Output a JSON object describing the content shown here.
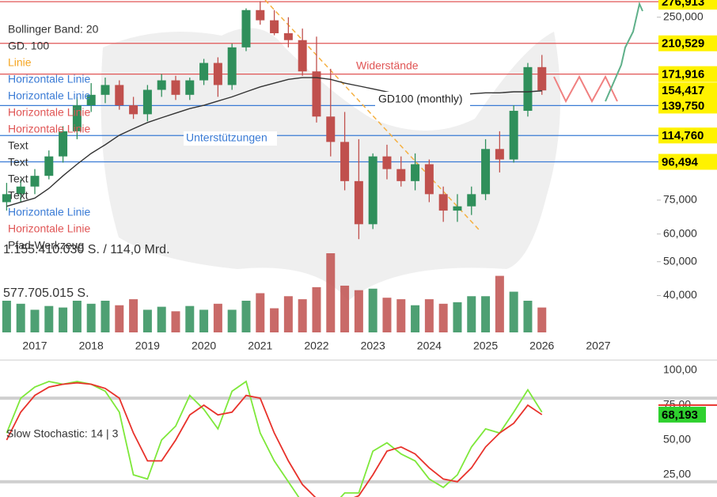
{
  "chart_data": [
    {
      "type": "candlestick",
      "log": true,
      "legend": [
        {
          "text": "Bollinger Band: 20",
          "color": "#333333"
        },
        {
          "text": "GD. 100",
          "color": "#333333"
        },
        {
          "text": "Linie",
          "color": "#f5a623"
        },
        {
          "text": "Horizontale Linie",
          "color": "#3a7bd5"
        },
        {
          "text": "Horizontale Linie",
          "color": "#3a7bd5"
        },
        {
          "text": "Horizontale Linie",
          "color": "#e05555"
        },
        {
          "text": "Horizontale Linie",
          "color": "#e05555"
        },
        {
          "text": "Text",
          "color": "#333333"
        },
        {
          "text": "Text",
          "color": "#333333"
        },
        {
          "text": "Text",
          "color": "#333333"
        },
        {
          "text": "Text",
          "color": "#333333"
        },
        {
          "text": "Horizontale Linie",
          "color": "#3a7bd5"
        },
        {
          "text": "Horizontale Linie",
          "color": "#e05555"
        },
        {
          "text": "Pfad-Werkzeug",
          "color": "#333333"
        }
      ],
      "annotations": {
        "resistance": "Widerstände",
        "support": "Unterstützungen",
        "gd": "GD100 (monthly)"
      },
      "x": [
        2016.5,
        2016.75,
        2017,
        2017.25,
        2017.5,
        2017.75,
        2018,
        2018.25,
        2018.5,
        2018.75,
        2019,
        2019.25,
        2019.5,
        2019.75,
        2020,
        2020.25,
        2020.5,
        2020.75,
        2021,
        2021.25,
        2021.5,
        2021.75,
        2022,
        2022.25,
        2022.5,
        2022.75,
        2023,
        2023.25,
        2023.5,
        2023.75,
        2024,
        2024.25,
        2024.5,
        2024.75,
        2025,
        2025.25,
        2025.5,
        2025.75,
        2026
      ],
      "open": [
        74000,
        78000,
        82000,
        88000,
        100000,
        118000,
        140000,
        150000,
        160000,
        140000,
        132000,
        155000,
        165000,
        150000,
        165000,
        185000,
        160000,
        205000,
        262000,
        245000,
        225000,
        215000,
        175000,
        130000,
        110000,
        85000,
        64000,
        100000,
        92000,
        85000,
        95000,
        78000,
        70000,
        72000,
        78000,
        105000,
        98000,
        135000,
        180000
      ],
      "high": [
        84000,
        86000,
        92000,
        104000,
        122000,
        148000,
        162000,
        168000,
        165000,
        148000,
        160000,
        172000,
        170000,
        168000,
        190000,
        192000,
        210000,
        265000,
        278000,
        262000,
        250000,
        232000,
        220000,
        178000,
        134000,
        112000,
        102000,
        108000,
        100000,
        102000,
        98000,
        82000,
        78000,
        82000,
        112000,
        118000,
        140000,
        185000,
        195000
      ],
      "low": [
        70000,
        74000,
        78000,
        86000,
        96000,
        112000,
        134000,
        142000,
        136000,
        128000,
        126000,
        148000,
        145000,
        145000,
        160000,
        148000,
        155000,
        200000,
        238000,
        222000,
        205000,
        170000,
        125000,
        100000,
        80000,
        58000,
        62000,
        86000,
        82000,
        80000,
        74000,
        65000,
        65000,
        68000,
        75000,
        90000,
        96000,
        130000,
        150000
      ],
      "close": [
        78000,
        82000,
        88000,
        100000,
        118000,
        140000,
        150000,
        160000,
        140000,
        132000,
        155000,
        165000,
        150000,
        165000,
        185000,
        160000,
        205000,
        262000,
        245000,
        225000,
        215000,
        175000,
        130000,
        110000,
        85000,
        64000,
        100000,
        92000,
        85000,
        95000,
        78000,
        70000,
        72000,
        78000,
        105000,
        98000,
        135000,
        180000,
        154417
      ],
      "gd100": [
        72000,
        74000,
        76000,
        81000,
        88000,
        95000,
        102000,
        108000,
        115000,
        120000,
        125000,
        129000,
        133000,
        137000,
        140000,
        144000,
        148000,
        153000,
        158000,
        162000,
        166000,
        168000,
        168000,
        166000,
        162000,
        159000,
        156000,
        153000,
        150000,
        149000,
        149000,
        150000,
        150000,
        151000,
        152000,
        152000,
        153000,
        153000,
        154000
      ],
      "up_color": "#2f8f5b",
      "down_color": "#c0504d",
      "gd_color": "#333333",
      "ylim": [
        31400,
        280000
      ],
      "yticks": [
        {
          "value": 250000,
          "label": "250,000"
        },
        {
          "value": 75000,
          "label": "75,000"
        },
        {
          "value": 60000,
          "label": "60,000"
        },
        {
          "value": 50000,
          "label": "50,000"
        },
        {
          "value": 40000,
          "label": "40,000"
        }
      ],
      "levels": [
        {
          "value": 276913,
          "label": "276,913",
          "line_color": "#e05555"
        },
        {
          "value": 210529,
          "label": "210,529",
          "line_color": "#e05555"
        },
        {
          "value": 171916,
          "label": "171,916",
          "line_color": "#e05555"
        },
        {
          "value": 154417,
          "label": "154,417"
        },
        {
          "value": 139750,
          "label": "139,750",
          "line_color": "#3a7bd5"
        },
        {
          "value": 114760,
          "label": "114,760",
          "line_color": "#3a7bd5"
        },
        {
          "value": 96494,
          "label": "96,494",
          "line_color": "#3a7bd5"
        }
      ],
      "level_box_color": "#fff200",
      "xlim": [
        2016.382,
        2028.04
      ],
      "xticks": [
        2017,
        2018,
        2019,
        2020,
        2021,
        2022,
        2023,
        2024,
        2025,
        2026,
        2027
      ]
    },
    {
      "type": "bar",
      "x": [
        2016.5,
        2016.75,
        2017,
        2017.25,
        2017.5,
        2017.75,
        2018,
        2018.25,
        2018.5,
        2018.75,
        2019,
        2019.25,
        2019.5,
        2019.75,
        2020,
        2020.25,
        2020.5,
        2020.75,
        2021,
        2021.25,
        2021.5,
        2021.75,
        2022,
        2022.25,
        2022.5,
        2022.75,
        2023,
        2023.25,
        2023.5,
        2023.75,
        2024,
        2024.25,
        2024.5,
        2024.75,
        2025,
        2025.25,
        2025.5,
        2025.75,
        2026
      ],
      "values": [
        420000000,
        380000000,
        300000000,
        350000000,
        330000000,
        420000000,
        380000000,
        420000000,
        360000000,
        440000000,
        300000000,
        340000000,
        280000000,
        350000000,
        300000000,
        380000000,
        300000000,
        420000000,
        520000000,
        320000000,
        480000000,
        440000000,
        600000000,
        1050000000,
        620000000,
        560000000,
        580000000,
        460000000,
        440000000,
        360000000,
        440000000,
        380000000,
        400000000,
        480000000,
        480000000,
        750000000,
        540000000,
        420000000,
        330000000
      ],
      "ylim": [
        0,
        1260000000
      ],
      "yticks": [
        {
          "value": 1155410030,
          "label": "1.155.410.030 S. / 114,0 Mrd."
        },
        {
          "value": 577705015,
          "label": "577.705.015 S."
        }
      ]
    },
    {
      "type": "line",
      "title": "Slow Stochastic: 14 | 3",
      "x": [
        2016.5,
        2016.75,
        2017,
        2017.25,
        2017.5,
        2017.75,
        2018,
        2018.25,
        2018.5,
        2018.75,
        2019,
        2019.25,
        2019.5,
        2019.75,
        2020,
        2020.25,
        2020.5,
        2020.75,
        2021,
        2021.25,
        2021.5,
        2021.75,
        2022,
        2022.25,
        2022.5,
        2022.75,
        2023,
        2023.25,
        2023.5,
        2023.75,
        2024,
        2024.25,
        2024.5,
        2024.75,
        2025,
        2025.25,
        2025.5,
        2025.75,
        2026
      ],
      "series": [
        {
          "color": "#7ee83a",
          "values": [
            55,
            80,
            88,
            92,
            90,
            92,
            90,
            85,
            70,
            25,
            22,
            50,
            60,
            82,
            72,
            58,
            85,
            92,
            55,
            35,
            20,
            5,
            2,
            1,
            12,
            12,
            42,
            48,
            40,
            35,
            22,
            16,
            25,
            45,
            58,
            55,
            70,
            86,
            70
          ]
        },
        {
          "color": "#e8322b",
          "values": [
            50,
            70,
            82,
            88,
            90,
            91,
            90,
            87,
            80,
            55,
            35,
            35,
            50,
            68,
            75,
            68,
            70,
            82,
            80,
            55,
            35,
            18,
            8,
            3,
            6,
            10,
            25,
            42,
            45,
            40,
            30,
            22,
            20,
            30,
            45,
            55,
            62,
            75,
            68.193
          ]
        }
      ],
      "ylim": [
        9.1,
        104.5
      ],
      "yticks": [
        {
          "value": 100,
          "label": "100,00"
        },
        {
          "value": 75,
          "label": "75,00"
        },
        {
          "value": 50,
          "label": "50,00"
        },
        {
          "value": 25,
          "label": "25,00"
        }
      ],
      "bands": [
        80,
        20
      ],
      "last_label": {
        "value": 68.193,
        "label": "68,193"
      },
      "last_color": "#2fd12f"
    }
  ]
}
